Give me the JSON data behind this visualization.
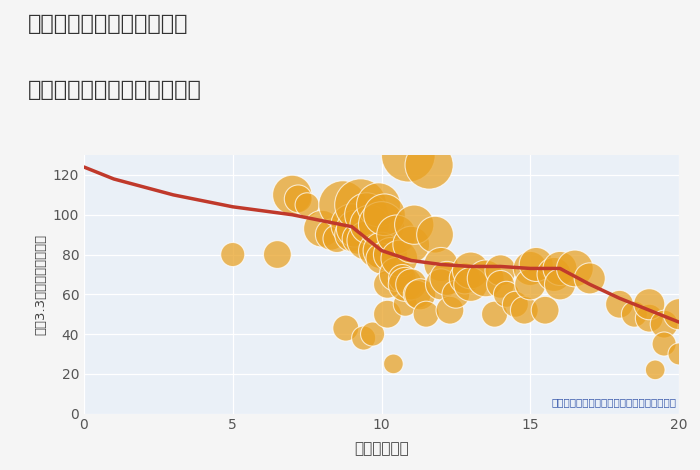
{
  "title_line1": "奈良県奈良市学園大和町の",
  "title_line2": "駅距離別中古マンション価格",
  "xlabel": "駅距離（分）",
  "ylabel": "坪（3.3㎡）単価（万円）",
  "annotation": "円の大きさは、取引のあった物件面積を示す",
  "xlim": [
    0,
    20
  ],
  "ylim": [
    0,
    130
  ],
  "xticks": [
    0,
    5,
    10,
    15,
    20
  ],
  "yticks": [
    0,
    20,
    40,
    60,
    80,
    100,
    120
  ],
  "background_color": "#f5f5f5",
  "plot_bg_color": "#eaf0f7",
  "bubble_color": "#e8a020",
  "bubble_edge_color": "#ffffff",
  "bubble_alpha": 0.72,
  "line_color": "#c0392b",
  "line_width": 2.5,
  "scatter_x": [
    7.0,
    7.2,
    7.5,
    8.0,
    8.3,
    8.5,
    8.7,
    8.8,
    9.0,
    9.0,
    9.1,
    9.2,
    9.3,
    9.4,
    9.5,
    9.5,
    9.6,
    9.7,
    9.8,
    9.9,
    10.0,
    10.0,
    10.0,
    10.1,
    10.2,
    10.2,
    10.3,
    10.4,
    10.5,
    10.5,
    10.6,
    10.7,
    10.8,
    10.8,
    10.9,
    11.0,
    11.0,
    11.1,
    11.2,
    11.3,
    11.5,
    11.6,
    11.8,
    12.0,
    12.0,
    12.2,
    12.3,
    12.5,
    12.8,
    13.0,
    13.0,
    13.5,
    13.8,
    14.0,
    14.0,
    14.2,
    14.5,
    14.8,
    15.0,
    15.0,
    15.2,
    15.5,
    15.8,
    16.0,
    16.0,
    16.5,
    17.0,
    18.0,
    18.5,
    19.0,
    19.0,
    19.2,
    19.5,
    19.5,
    20.0,
    20.0,
    5.0,
    6.5
  ],
  "scatter_y": [
    110,
    108,
    105,
    93,
    90,
    88,
    105,
    43,
    95,
    90,
    93,
    88,
    105,
    38,
    100,
    87,
    95,
    40,
    82,
    105,
    95,
    82,
    78,
    100,
    65,
    50,
    80,
    25,
    90,
    70,
    78,
    68,
    55,
    65,
    130,
    85,
    65,
    95,
    60,
    60,
    50,
    125,
    90,
    75,
    65,
    68,
    52,
    60,
    68,
    72,
    65,
    68,
    50,
    72,
    65,
    60,
    55,
    52,
    73,
    65,
    75,
    52,
    70,
    73,
    65,
    73,
    68,
    55,
    50,
    48,
    55,
    22,
    45,
    35,
    50,
    30,
    80,
    80
  ],
  "scatter_sizes": [
    800,
    400,
    300,
    700,
    500,
    400,
    1200,
    350,
    900,
    600,
    700,
    500,
    1400,
    300,
    1000,
    800,
    800,
    300,
    600,
    1000,
    1100,
    700,
    500,
    900,
    400,
    400,
    600,
    200,
    800,
    600,
    700,
    400,
    300,
    600,
    1500,
    700,
    500,
    800,
    400,
    500,
    350,
    1200,
    700,
    600,
    500,
    600,
    400,
    400,
    500,
    700,
    600,
    700,
    350,
    500,
    400,
    350,
    350,
    400,
    600,
    500,
    600,
    400,
    600,
    600,
    500,
    700,
    500,
    400,
    350,
    400,
    500,
    200,
    400,
    300,
    500,
    250,
    300,
    400
  ],
  "trend_x": [
    0,
    1,
    2,
    3,
    4,
    5,
    6,
    7,
    8,
    9,
    10,
    11,
    12,
    13,
    14,
    15,
    16,
    17,
    18,
    19,
    20
  ],
  "trend_y": [
    124,
    118,
    114,
    110,
    107,
    104,
    102,
    100,
    97,
    94,
    82,
    77,
    75,
    74,
    74,
    73,
    73,
    65,
    58,
    52,
    46
  ]
}
